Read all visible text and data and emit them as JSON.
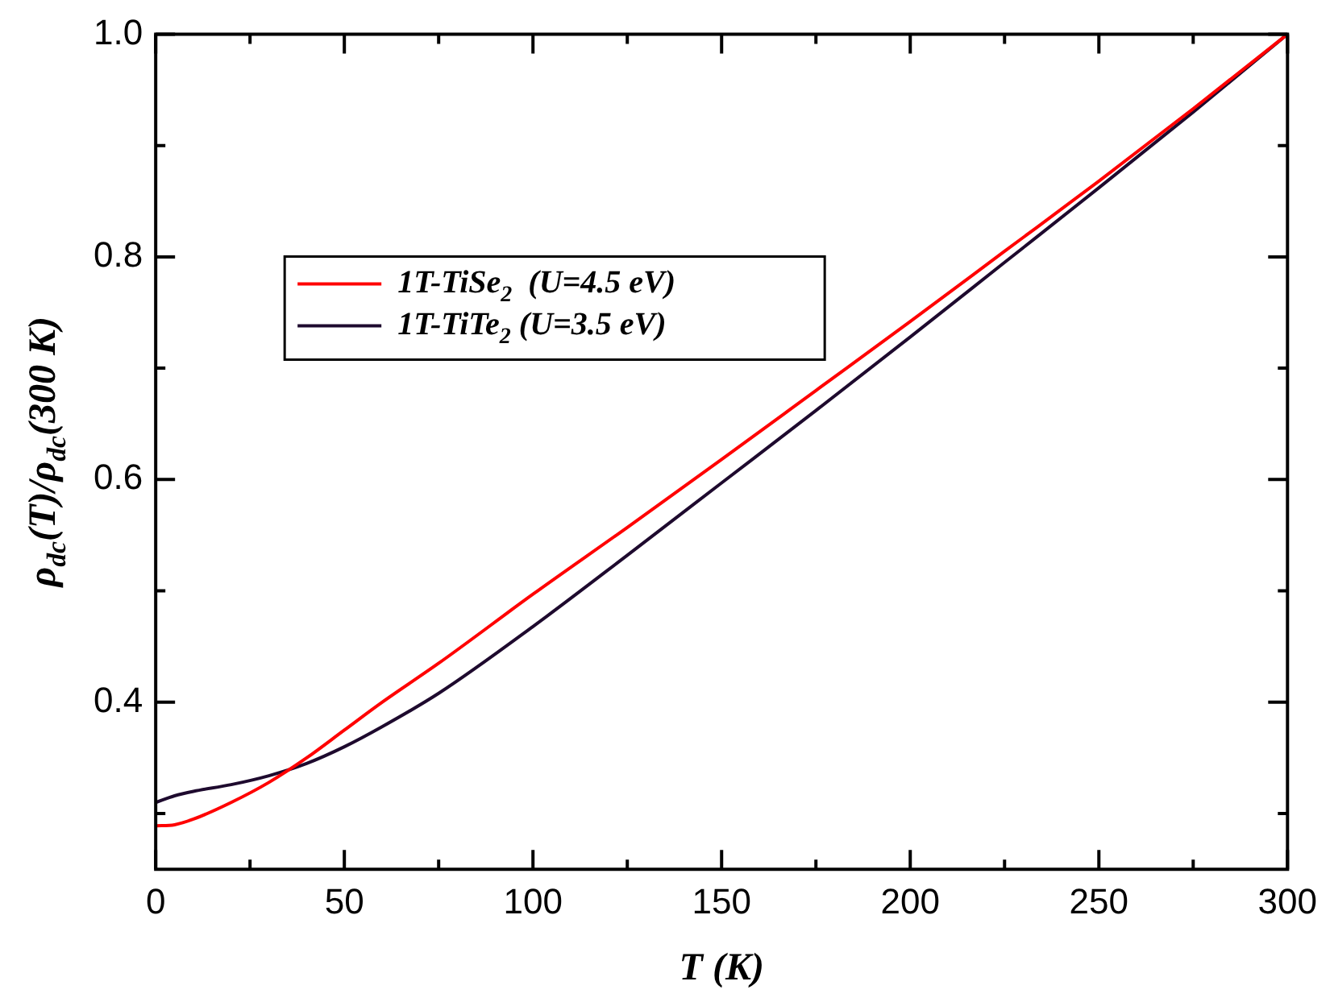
{
  "chart_data": {
    "type": "line",
    "xlabel": "T (K)",
    "ylabel": "ρ$_{dc}$(T)/ρ$_{dc}$(300 K)",
    "x": [
      0,
      5,
      10,
      20,
      30,
      40,
      50,
      60,
      75,
      100,
      125,
      150,
      175,
      200,
      225,
      250,
      275,
      300
    ],
    "series": [
      {
        "name": "1T-TiSe$_{2}$  (U=4.5 eV)",
        "color": "#ff0000",
        "values": [
          0.289,
          0.29,
          0.295,
          0.31,
          0.328,
          0.35,
          0.375,
          0.4,
          0.435,
          0.497,
          0.557,
          0.618,
          0.68,
          0.742,
          0.805,
          0.868,
          0.933,
          1.0
        ]
      },
      {
        "name": "1T-TiTe$_{2}$ (U=3.5 eV)",
        "color": "#1e0a2e",
        "values": [
          0.31,
          0.316,
          0.32,
          0.326,
          0.334,
          0.345,
          0.36,
          0.378,
          0.408,
          0.468,
          0.532,
          0.597,
          0.662,
          0.728,
          0.795,
          0.862,
          0.93,
          1.0
        ]
      }
    ],
    "xlim": [
      0,
      300
    ],
    "xticks": [
      0,
      {
        "value": 25,
        "label": null
      },
      50,
      {
        "value": 75,
        "label": null
      },
      100,
      {
        "value": 125,
        "label": null
      },
      150,
      {
        "value": 175,
        "label": null
      },
      200,
      {
        "value": 225,
        "label": null
      },
      250,
      {
        "value": 275,
        "label": null
      },
      300
    ],
    "ylim": [
      0.25,
      1.0
    ],
    "yticks": [
      {
        "value": 0.3,
        "label": null
      },
      {
        "value": 0.4,
        "label": "0.4"
      },
      {
        "value": 0.5,
        "label": null
      },
      {
        "value": 0.6,
        "label": "0.6"
      },
      {
        "value": 0.7,
        "label": null
      },
      {
        "value": 0.8,
        "label": "0.8"
      },
      {
        "value": 0.9,
        "label": null
      },
      {
        "value": 1.0,
        "label": "1.0"
      }
    ],
    "grid": false,
    "legend": "top left",
    "marker": "none",
    "line_style": "solid"
  }
}
